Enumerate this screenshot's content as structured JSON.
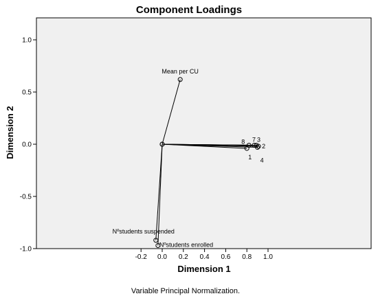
{
  "chart_data": {
    "type": "scatter",
    "title": "Component Loadings",
    "xlabel": "Dimension 1",
    "ylabel": "Dimension 2",
    "footnote": "Variable Principal Normalization.",
    "xlim": [
      -0.2,
      1.0
    ],
    "ylim": [
      -1.0,
      1.0
    ],
    "xticks": [
      "-0.2",
      "0.0",
      "0.2",
      "0.4",
      "0.6",
      "0.8",
      "1.0"
    ],
    "yticks": [
      "1.0",
      "0.5",
      "0.0",
      "-0.5",
      "-1.0"
    ],
    "grid": false,
    "vectors_from_origin": true,
    "points": [
      {
        "label": "Mean per CU",
        "x": 0.17,
        "y": 0.62
      },
      {
        "label": "Nºstudents suspended",
        "x": -0.06,
        "y": -0.92
      },
      {
        "label": "Nºstudents enrolled",
        "x": -0.04,
        "y": -0.97
      },
      {
        "label": "8",
        "x": 0.82,
        "y": -0.01
      },
      {
        "label": "7",
        "x": 0.87,
        "y": -0.01
      },
      {
        "label": "3",
        "x": 0.89,
        "y": -0.01
      },
      {
        "label": "2",
        "x": 0.91,
        "y": -0.02
      },
      {
        "label": "1",
        "x": 0.8,
        "y": -0.04
      },
      {
        "label": "4",
        "x": 0.9,
        "y": -0.03
      }
    ]
  },
  "colors": {
    "plot_background": "#f0f0f0",
    "marker": "#000000",
    "line": "#000000"
  }
}
